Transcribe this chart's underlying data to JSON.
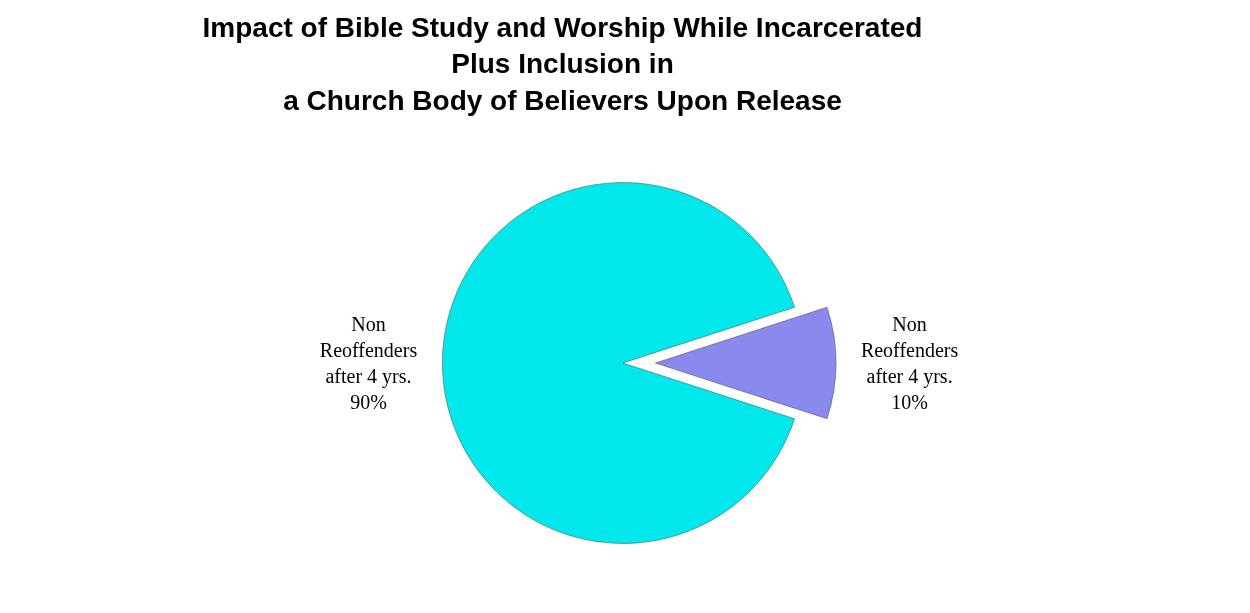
{
  "chart_data": {
    "type": "pie",
    "title": "Impact of Bible Study and Worship While Incarcerated\nPlus Inclusion in\na Church Body of Believers Upon Release",
    "categories": [
      "Non Reoffenders after 4 yrs.",
      "Non Reoffenders after 4 yrs."
    ],
    "values": [
      90,
      10
    ],
    "colors": [
      "#00e8ec",
      "#8a8aee"
    ],
    "value_labels": [
      "90%",
      "10%"
    ]
  }
}
